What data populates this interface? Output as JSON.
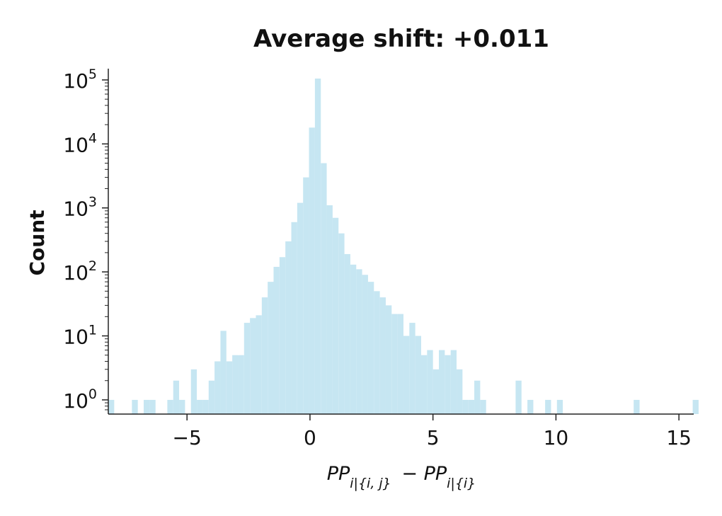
{
  "chart_data": {
    "type": "histogram",
    "title": "Average shift: +0.011",
    "xlabel": "PP_{i|{i,j}} − PP_{i|{i}}",
    "ylabel": "Count",
    "xlim": [
      -8.2,
      15.6
    ],
    "ylim": [
      0.6,
      150000
    ],
    "yscale": "log",
    "grid": false,
    "x_ticks": [
      -5,
      0,
      5,
      10,
      15
    ],
    "x_tick_labels": [
      "−5",
      "0",
      "5",
      "10",
      "15"
    ],
    "y_ticks": [
      1,
      10,
      100,
      1000,
      10000,
      100000
    ],
    "y_tick_labels": [
      {
        "base": "10",
        "exp": "0"
      },
      {
        "base": "10",
        "exp": "1"
      },
      {
        "base": "10",
        "exp": "2"
      },
      {
        "base": "10",
        "exp": "3"
      },
      {
        "base": "10",
        "exp": "4"
      },
      {
        "base": "10",
        "exp": "5"
      }
    ],
    "bar_color": "#c6e6f2",
    "bin_width": 0.24,
    "bins": [
      {
        "x": -8.2,
        "count": 1
      },
      {
        "x": -7.24,
        "count": 1
      },
      {
        "x": -6.76,
        "count": 1
      },
      {
        "x": -6.52,
        "count": 1
      },
      {
        "x": -5.8,
        "count": 1
      },
      {
        "x": -5.56,
        "count": 2
      },
      {
        "x": -5.32,
        "count": 1
      },
      {
        "x": -4.84,
        "count": 3
      },
      {
        "x": -4.6,
        "count": 1
      },
      {
        "x": -4.36,
        "count": 1
      },
      {
        "x": -4.12,
        "count": 2
      },
      {
        "x": -3.88,
        "count": 4
      },
      {
        "x": -3.64,
        "count": 12
      },
      {
        "x": -3.4,
        "count": 4
      },
      {
        "x": -3.16,
        "count": 5
      },
      {
        "x": -2.92,
        "count": 5
      },
      {
        "x": -2.68,
        "count": 16
      },
      {
        "x": -2.44,
        "count": 19
      },
      {
        "x": -2.2,
        "count": 21
      },
      {
        "x": -1.96,
        "count": 40
      },
      {
        "x": -1.72,
        "count": 70
      },
      {
        "x": -1.48,
        "count": 120
      },
      {
        "x": -1.24,
        "count": 170
      },
      {
        "x": -1.0,
        "count": 300
      },
      {
        "x": -0.76,
        "count": 600
      },
      {
        "x": -0.52,
        "count": 1200
      },
      {
        "x": -0.28,
        "count": 3000
      },
      {
        "x": -0.04,
        "count": 18000
      },
      {
        "x": 0.2,
        "count": 105000
      },
      {
        "x": 0.44,
        "count": 5000
      },
      {
        "x": 0.68,
        "count": 1100
      },
      {
        "x": 0.92,
        "count": 700
      },
      {
        "x": 1.16,
        "count": 400
      },
      {
        "x": 1.4,
        "count": 190
      },
      {
        "x": 1.64,
        "count": 130
      },
      {
        "x": 1.88,
        "count": 110
      },
      {
        "x": 2.12,
        "count": 90
      },
      {
        "x": 2.36,
        "count": 70
      },
      {
        "x": 2.6,
        "count": 50
      },
      {
        "x": 2.84,
        "count": 40
      },
      {
        "x": 3.08,
        "count": 30
      },
      {
        "x": 3.32,
        "count": 22
      },
      {
        "x": 3.56,
        "count": 22
      },
      {
        "x": 3.8,
        "count": 10
      },
      {
        "x": 4.04,
        "count": 16
      },
      {
        "x": 4.28,
        "count": 10
      },
      {
        "x": 4.52,
        "count": 5
      },
      {
        "x": 4.76,
        "count": 6
      },
      {
        "x": 5.0,
        "count": 3
      },
      {
        "x": 5.24,
        "count": 6
      },
      {
        "x": 5.48,
        "count": 5
      },
      {
        "x": 5.72,
        "count": 6
      },
      {
        "x": 5.96,
        "count": 3
      },
      {
        "x": 6.2,
        "count": 1
      },
      {
        "x": 6.44,
        "count": 1
      },
      {
        "x": 6.68,
        "count": 2
      },
      {
        "x": 6.92,
        "count": 1
      },
      {
        "x": 8.36,
        "count": 2
      },
      {
        "x": 8.84,
        "count": 1
      },
      {
        "x": 9.56,
        "count": 1
      },
      {
        "x": 10.04,
        "count": 1
      },
      {
        "x": 13.16,
        "count": 1
      },
      {
        "x": 15.56,
        "count": 1
      }
    ]
  }
}
